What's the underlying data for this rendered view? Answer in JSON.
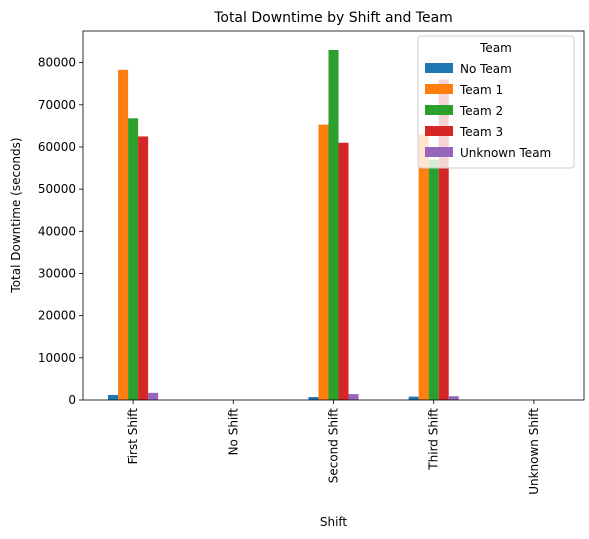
{
  "chart_data": {
    "type": "bar",
    "title": "Total Downtime by Shift and Team",
    "xlabel": "Shift",
    "ylabel": "Total Downtime (seconds)",
    "categories": [
      "First Shift",
      "No Shift",
      "Second Shift",
      "Third Shift",
      "Unknown Shift"
    ],
    "ylim": [
      0,
      87500
    ],
    "yticks": [
      0,
      10000,
      20000,
      30000,
      40000,
      50000,
      60000,
      70000,
      80000
    ],
    "legend_title": "Team",
    "legend_position": "upper-right",
    "grid": false,
    "series": [
      {
        "name": "No Team",
        "color": "#1f77b4",
        "values": [
          1200,
          0,
          700,
          800,
          0
        ]
      },
      {
        "name": "Team 1",
        "color": "#ff7f0e",
        "values": [
          78300,
          0,
          65300,
          63000,
          0
        ]
      },
      {
        "name": "Team 2",
        "color": "#2ca02c",
        "values": [
          66800,
          0,
          83000,
          57000,
          0
        ]
      },
      {
        "name": "Team 3",
        "color": "#d62728",
        "values": [
          62500,
          0,
          61000,
          76000,
          0
        ]
      },
      {
        "name": "Unknown Team",
        "color": "#9467bd",
        "values": [
          1700,
          0,
          1400,
          900,
          0
        ]
      }
    ]
  }
}
